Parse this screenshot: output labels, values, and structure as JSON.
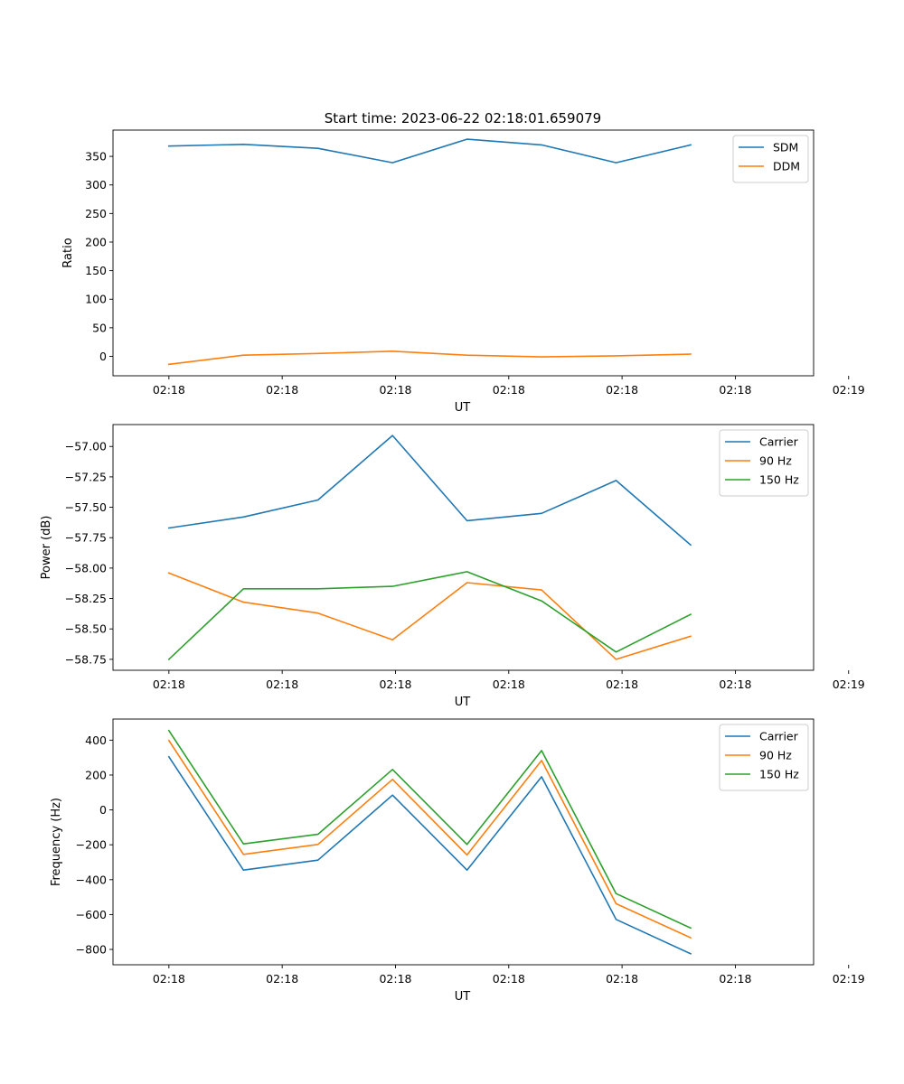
{
  "figure": {
    "title": "Start time: 2023-06-22 02:18:01.659079"
  },
  "chart_data": [
    {
      "type": "line",
      "ylabel": "Ratio",
      "xlabel": "UT",
      "ylim": [
        -34,
        396
      ],
      "yticks": [
        0,
        50,
        100,
        150,
        200,
        250,
        300,
        350
      ],
      "yticklabels": [
        "0",
        "50",
        "100",
        "150",
        "200",
        "250",
        "300",
        "350"
      ],
      "xlim": [
        -0.75,
        8.65
      ],
      "xticks": [
        0,
        1.52,
        3.04,
        4.56,
        6.08,
        7.6,
        9.12
      ],
      "xticklabels": [
        "02:18",
        "02:18",
        "02:18",
        "02:18",
        "02:18",
        "02:18",
        "02:19"
      ],
      "x": [
        0,
        1,
        2,
        3,
        4,
        5,
        6,
        7
      ],
      "legend": "top-right",
      "series": [
        {
          "name": "SDM",
          "color": "#1f77b4",
          "values": [
            368,
            371,
            364,
            339,
            380,
            370,
            339,
            370
          ]
        },
        {
          "name": "DDM",
          "color": "#ff7f0e",
          "values": [
            -14,
            2,
            5,
            9,
            2,
            -1,
            1,
            4
          ]
        }
      ]
    },
    {
      "type": "line",
      "ylabel": "Power (dB)",
      "xlabel": "UT",
      "ylim": [
        -58.84,
        -56.82
      ],
      "yticks": [
        -58.75,
        -58.5,
        -58.25,
        -58.0,
        -57.75,
        -57.5,
        -57.25,
        -57.0
      ],
      "yticklabels": [
        "−58.75",
        "−58.50",
        "−58.25",
        "−58.00",
        "−57.75",
        "−57.50",
        "−57.25",
        "−57.00"
      ],
      "xlim": [
        -0.75,
        8.65
      ],
      "xticks": [
        0,
        1.52,
        3.04,
        4.56,
        6.08,
        7.6,
        9.12
      ],
      "xticklabels": [
        "02:18",
        "02:18",
        "02:18",
        "02:18",
        "02:18",
        "02:18",
        "02:19"
      ],
      "x": [
        0,
        1,
        2,
        3,
        4,
        5,
        6,
        7
      ],
      "legend": "top-right",
      "series": [
        {
          "name": "Carrier",
          "color": "#1f77b4",
          "values": [
            -57.67,
            -57.58,
            -57.44,
            -56.91,
            -57.61,
            -57.55,
            -57.28,
            -57.81
          ]
        },
        {
          "name": "90 Hz",
          "color": "#ff7f0e",
          "values": [
            -58.04,
            -58.28,
            -58.37,
            -58.59,
            -58.12,
            -58.18,
            -58.75,
            -58.56
          ]
        },
        {
          "name": "150 Hz",
          "color": "#2ca02c",
          "values": [
            -58.75,
            -58.17,
            -58.17,
            -58.15,
            -58.03,
            -58.27,
            -58.69,
            -58.38
          ]
        }
      ]
    },
    {
      "type": "line",
      "ylabel": "Frequency (Hz)",
      "xlabel": "UT",
      "ylim": [
        -888,
        521
      ],
      "yticks": [
        -800,
        -600,
        -400,
        -200,
        0,
        200,
        400
      ],
      "yticklabels": [
        "−800",
        "−600",
        "−400",
        "−200",
        "0",
        "200",
        "400"
      ],
      "xlim": [
        -0.75,
        8.65
      ],
      "xticks": [
        0,
        1.52,
        3.04,
        4.56,
        6.08,
        7.6,
        9.12
      ],
      "xticklabels": [
        "02:18",
        "02:18",
        "02:18",
        "02:18",
        "02:18",
        "02:18",
        "02:19"
      ],
      "x": [
        0,
        1,
        2,
        3,
        4,
        5,
        6,
        7
      ],
      "legend": "top-right",
      "series": [
        {
          "name": "Carrier",
          "color": "#1f77b4",
          "values": [
            305,
            -345,
            -288,
            85,
            -345,
            190,
            -628,
            -825
          ]
        },
        {
          "name": "90 Hz",
          "color": "#ff7f0e",
          "values": [
            398,
            -255,
            -198,
            175,
            -258,
            283,
            -538,
            -733
          ]
        },
        {
          "name": "150 Hz",
          "color": "#2ca02c",
          "values": [
            455,
            -195,
            -140,
            232,
            -198,
            340,
            -480,
            -677
          ]
        }
      ]
    }
  ]
}
